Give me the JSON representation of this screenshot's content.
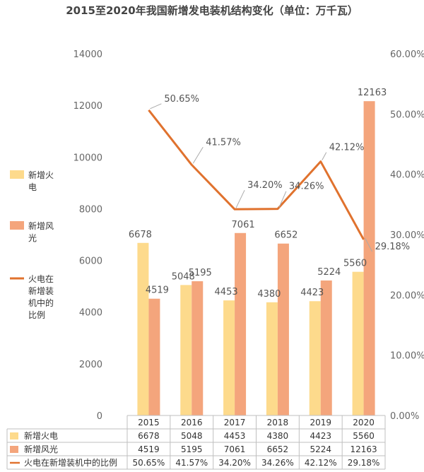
{
  "chart_data": {
    "type": "bar",
    "title": "2015至2020年我国新增发电装机结构变化（单位：万千瓦）",
    "categories": [
      "2015",
      "2016",
      "2017",
      "2018",
      "2019",
      "2020"
    ],
    "ylim": [
      0,
      14000
    ],
    "y_ticks": [
      "0",
      "2000",
      "4000",
      "6000",
      "8000",
      "10000",
      "12000",
      "14000"
    ],
    "y2lim": [
      0,
      60
    ],
    "y2_ticks": [
      "0.00%",
      "10.00%",
      "20.00%",
      "30.00%",
      "40.00%",
      "50.00%",
      "60.00%"
    ],
    "series": [
      {
        "name": "新增火电",
        "type": "bar",
        "axis": "left",
        "color": "#FDDA8C",
        "values": [
          6678,
          5048,
          4453,
          4380,
          4423,
          5560
        ],
        "labels": [
          "6678",
          "5048",
          "4453",
          "4380",
          "4423",
          "5560"
        ]
      },
      {
        "name": "新增风光",
        "type": "bar",
        "axis": "left",
        "color": "#F4A57C",
        "values": [
          4519,
          5195,
          7061,
          6652,
          5224,
          12163
        ],
        "labels": [
          "4519",
          "5195",
          "7061",
          "6652",
          "5224",
          "12163"
        ]
      },
      {
        "name": "火电在新增装机中的比例",
        "type": "line",
        "axis": "right",
        "color": "#E0722E",
        "values": [
          50.65,
          41.57,
          34.2,
          34.26,
          42.12,
          29.18
        ],
        "labels": [
          "50.65%",
          "41.57%",
          "34.20%",
          "34.26%",
          "42.12%",
          "29.18%"
        ]
      }
    ],
    "legend": {
      "placement": "left",
      "entries": [
        [
          "新增火",
          "电"
        ],
        [
          "新增风",
          "光"
        ],
        [
          "火电在",
          "新增装",
          "机中的",
          "比例"
        ]
      ]
    },
    "table": {
      "row_labels": [
        "新增火电",
        "新增风光",
        "火电在新增装机中的比例"
      ],
      "rows": [
        [
          "6678",
          "5048",
          "4453",
          "4380",
          "4423",
          "5560"
        ],
        [
          "4519",
          "5195",
          "7061",
          "6652",
          "5224",
          "12163"
        ],
        [
          "50.65%",
          "41.57%",
          "34.20%",
          "34.26%",
          "42.12%",
          "29.18%"
        ]
      ]
    }
  }
}
